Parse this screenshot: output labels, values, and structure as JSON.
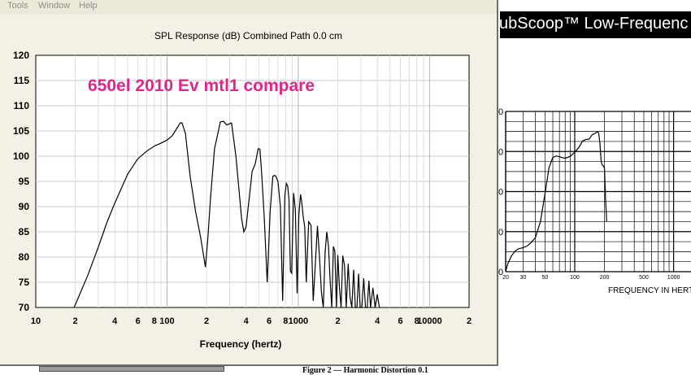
{
  "menu": {
    "items": [
      "Tools",
      "Window",
      "Help"
    ]
  },
  "spl_chart": {
    "title": "SPL Response (dB)   Combined   Path 0.0 cm",
    "xlabel": "Frequency (hertz)",
    "annotation": "650el 2010 Ev mtl1 compare",
    "line_color": "#000000",
    "annotation_color": "#e0268c"
  },
  "scan": {
    "banner": "ubScoop™ Low-Frequenc",
    "xlabel": "FREQUENCY IN HERT",
    "bottom_caption": "Figure 2 — Harmonic Distortion 0.1"
  },
  "chart_data": [
    {
      "type": "line",
      "title": "SPL Response (dB)   Combined   Path 0.0 cm",
      "xlabel": "Frequency (hertz)",
      "ylabel": "",
      "xscale": "log",
      "xlim": [
        10,
        20000
      ],
      "ylim": [
        70,
        120
      ],
      "grid": true,
      "yticks": [
        "120",
        "115",
        "110",
        "105",
        "100",
        "95",
        "90",
        "85",
        "80",
        "75",
        "70"
      ],
      "xticks": [
        {
          "value": 10,
          "label": "10"
        },
        {
          "value": 20,
          "label": "2"
        },
        {
          "value": 40,
          "label": "4"
        },
        {
          "value": 60,
          "label": "6"
        },
        {
          "value": 80,
          "label": "8"
        },
        {
          "value": 100,
          "label": "100"
        },
        {
          "value": 200,
          "label": "2"
        },
        {
          "value": 400,
          "label": "4"
        },
        {
          "value": 600,
          "label": "6"
        },
        {
          "value": 800,
          "label": "8"
        },
        {
          "value": 1000,
          "label": "1000"
        },
        {
          "value": 2000,
          "label": "2"
        },
        {
          "value": 4000,
          "label": "4"
        },
        {
          "value": 6000,
          "label": "6"
        },
        {
          "value": 8000,
          "label": "8"
        },
        {
          "value": 10000,
          "label": "10000"
        },
        {
          "value": 20000,
          "label": "2"
        }
      ],
      "series": [
        {
          "x": [
            19.6,
            25,
            30,
            35,
            40,
            50,
            60,
            70,
            80,
            90,
            100,
            110,
            118,
            126,
            130,
            138,
            150,
            165,
            180,
            196,
            205,
            215,
            230,
            255,
            270,
            285,
            310,
            335,
            360,
            370,
            385,
            400,
            420,
            445,
            470,
            495,
            510,
            525,
            550,
            580,
            610,
            640,
            660,
            675,
            700,
            730,
            760,
            790,
            810,
            830,
            850,
            870,
            890,
            920,
            950,
            980,
            1010,
            1040,
            1060,
            1090,
            1120,
            1150,
            1200,
            1250,
            1300,
            1350,
            1400,
            1450,
            1500,
            1550,
            1600,
            1650,
            1700,
            1750,
            1800,
            1850,
            1900,
            1950,
            2000,
            2060,
            2120,
            2180,
            2250,
            2320,
            2400,
            2480,
            2560,
            2640,
            2720,
            2800,
            2880,
            2960,
            3050,
            3150,
            3250,
            3350,
            3450,
            3550,
            3700,
            3850,
            4000,
            4150
          ],
          "y": [
            70,
            76.5,
            82,
            87,
            90.7,
            96.4,
            99.5,
            101,
            102,
            102.6,
            103.2,
            104.1,
            105.4,
            106.6,
            106.6,
            104.5,
            96,
            89,
            84,
            78,
            84,
            92,
            101.5,
            106.8,
            106.9,
            106.2,
            106.6,
            100,
            91,
            87.6,
            85,
            86,
            91,
            97,
            98.5,
            101.5,
            101.4,
            97,
            88,
            75,
            89,
            96,
            96.2,
            96,
            95,
            90,
            71.3,
            92.2,
            94.6,
            94.1,
            91.3,
            77.2,
            76.8,
            92.7,
            89.5,
            72.8,
            88.3,
            92.4,
            91.1,
            88,
            85.9,
            75,
            87,
            86.3,
            71.3,
            79,
            86.2,
            80,
            73,
            69.5,
            80.9,
            85,
            82.1,
            75,
            68,
            82.1,
            81.2,
            68.8,
            80.4,
            73.8,
            70,
            80.3,
            78.3,
            68,
            78.7,
            72,
            68,
            77.5,
            69.2,
            68.6,
            76.7,
            68.6,
            68.7,
            75.8,
            69,
            68,
            75.3,
            68.1,
            73.9,
            68,
            72.6,
            68
          ]
        }
      ]
    },
    {
      "type": "line",
      "title": "",
      "xlabel": "FREQUENCY IN HERT",
      "ylabel": "",
      "xscale": "log",
      "xlim": [
        20,
        1500
      ],
      "ylim": [
        0,
        40
      ],
      "grid": true,
      "yticks": [
        "0",
        "0",
        "0",
        "0",
        "0"
      ],
      "xticks": [
        {
          "value": 20,
          "label": "20"
        },
        {
          "value": 30,
          "label": "30"
        },
        {
          "value": 50,
          "label": "50"
        },
        {
          "value": 100,
          "label": "100"
        },
        {
          "value": 200,
          "label": "200"
        },
        {
          "value": 500,
          "label": "500"
        },
        {
          "value": 1000,
          "label": "1000"
        }
      ],
      "series": [
        {
          "x": [
            20,
            21,
            23,
            25,
            27,
            30,
            33,
            36,
            40,
            45,
            50,
            55,
            60,
            65,
            70,
            80,
            90,
            100,
            110,
            120,
            130,
            140,
            150,
            160,
            170,
            175,
            180,
            185,
            190,
            195,
            200,
            205,
            208,
            210
          ],
          "y": [
            0,
            2,
            4,
            5.2,
            5.7,
            6,
            6.4,
            7.2,
            8.5,
            12.5,
            19.5,
            26,
            28.5,
            28.9,
            28.7,
            28.3,
            28.8,
            29.8,
            31,
            32.6,
            33,
            33.1,
            34.2,
            34.5,
            35,
            34.5,
            32,
            27.5,
            26.6,
            26.4,
            25.8,
            18,
            15,
            12.5
          ]
        }
      ]
    }
  ]
}
